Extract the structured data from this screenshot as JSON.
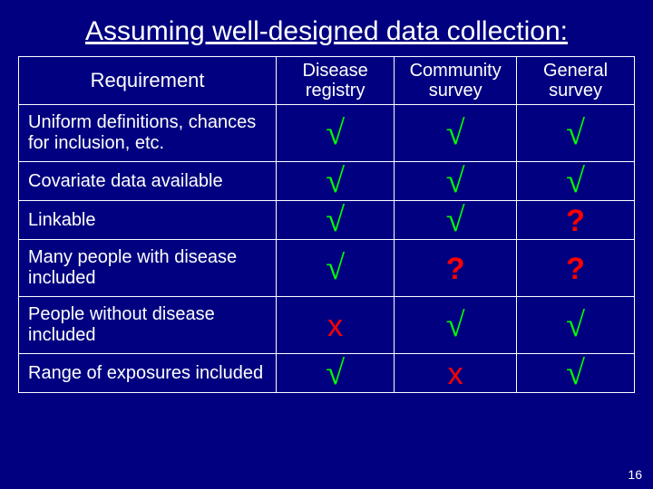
{
  "title": "Assuming well-designed data collection:",
  "page_number": "16",
  "colors": {
    "background": "#000080",
    "text": "#ffffff",
    "border": "#ffffff",
    "check": "#00ff00",
    "question": "#ff0000",
    "cross": "#ff0000"
  },
  "table": {
    "type": "table",
    "header": {
      "requirement": "Requirement",
      "col1": "Disease registry",
      "col2": "Community survey",
      "col3": "General survey"
    },
    "symbols": {
      "check": "√",
      "question": "?",
      "cross": "x"
    },
    "rows": [
      {
        "label": "Uniform definitions, chances for inclusion, etc.",
        "c1": "check",
        "c2": "check",
        "c3": "check"
      },
      {
        "label": "Covariate data available",
        "c1": "check",
        "c2": "check",
        "c3": "check"
      },
      {
        "label": "Linkable",
        "c1": "check",
        "c2": "check",
        "c3": "question"
      },
      {
        "label": "Many people with disease included",
        "c1": "check",
        "c2": "question",
        "c3": "question"
      },
      {
        "label": "People without disease included",
        "c1": "cross",
        "c2": "check",
        "c3": "check"
      },
      {
        "label": "Range of exposures included",
        "c1": "check",
        "c2": "cross",
        "c3": "check"
      }
    ]
  }
}
